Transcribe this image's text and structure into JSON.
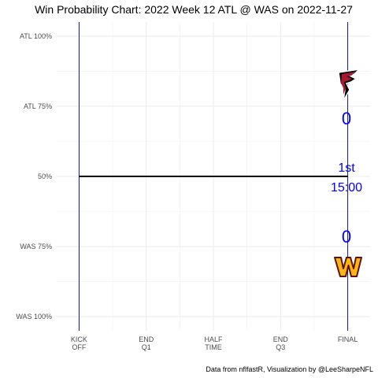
{
  "chart_data": {
    "type": "line",
    "title": "Win Probability Chart: 2022 Week 12 ATL @ WAS on 2022-11-27",
    "y_tick_labels": [
      "ATL 100%",
      "ATL 75%",
      "50%",
      "WAS 75%",
      "WAS 100%"
    ],
    "y_tick_values": [
      1.0,
      0.75,
      0.5,
      0.25,
      0.0
    ],
    "x_tick_labels": [
      [
        "KICK",
        "OFF"
      ],
      [
        "END",
        "Q1"
      ],
      [
        "HALF",
        "TIME"
      ],
      [
        "END",
        "Q3"
      ],
      [
        "FINAL"
      ]
    ],
    "x_tick_values": [
      0,
      900,
      1800,
      2700,
      3600
    ],
    "xlim": [
      0,
      3600
    ],
    "ylim": [
      0,
      1
    ],
    "series": [
      {
        "x": [
          0,
          3600
        ],
        "y": [
          0.5,
          0.5
        ],
        "color": "#000000"
      }
    ],
    "vertical_lines": [
      0,
      3600
    ],
    "vertical_line_color": "#191970",
    "grid": true,
    "annotations": {
      "away_score": "0",
      "home_score": "0",
      "quarter": "1st",
      "clock": "15:00",
      "text_color": "#0000ff"
    },
    "caption": "Data from nflfastR, Visualization by @LeeSharpeNFL",
    "logos": {
      "top": "falcons-logo",
      "bottom": "commanders-logo"
    },
    "colors": {
      "falcons_red": "#a71930",
      "falcons_black": "#000000",
      "commanders_burgundy": "#5a1414",
      "commanders_gold": "#ffb612"
    }
  }
}
